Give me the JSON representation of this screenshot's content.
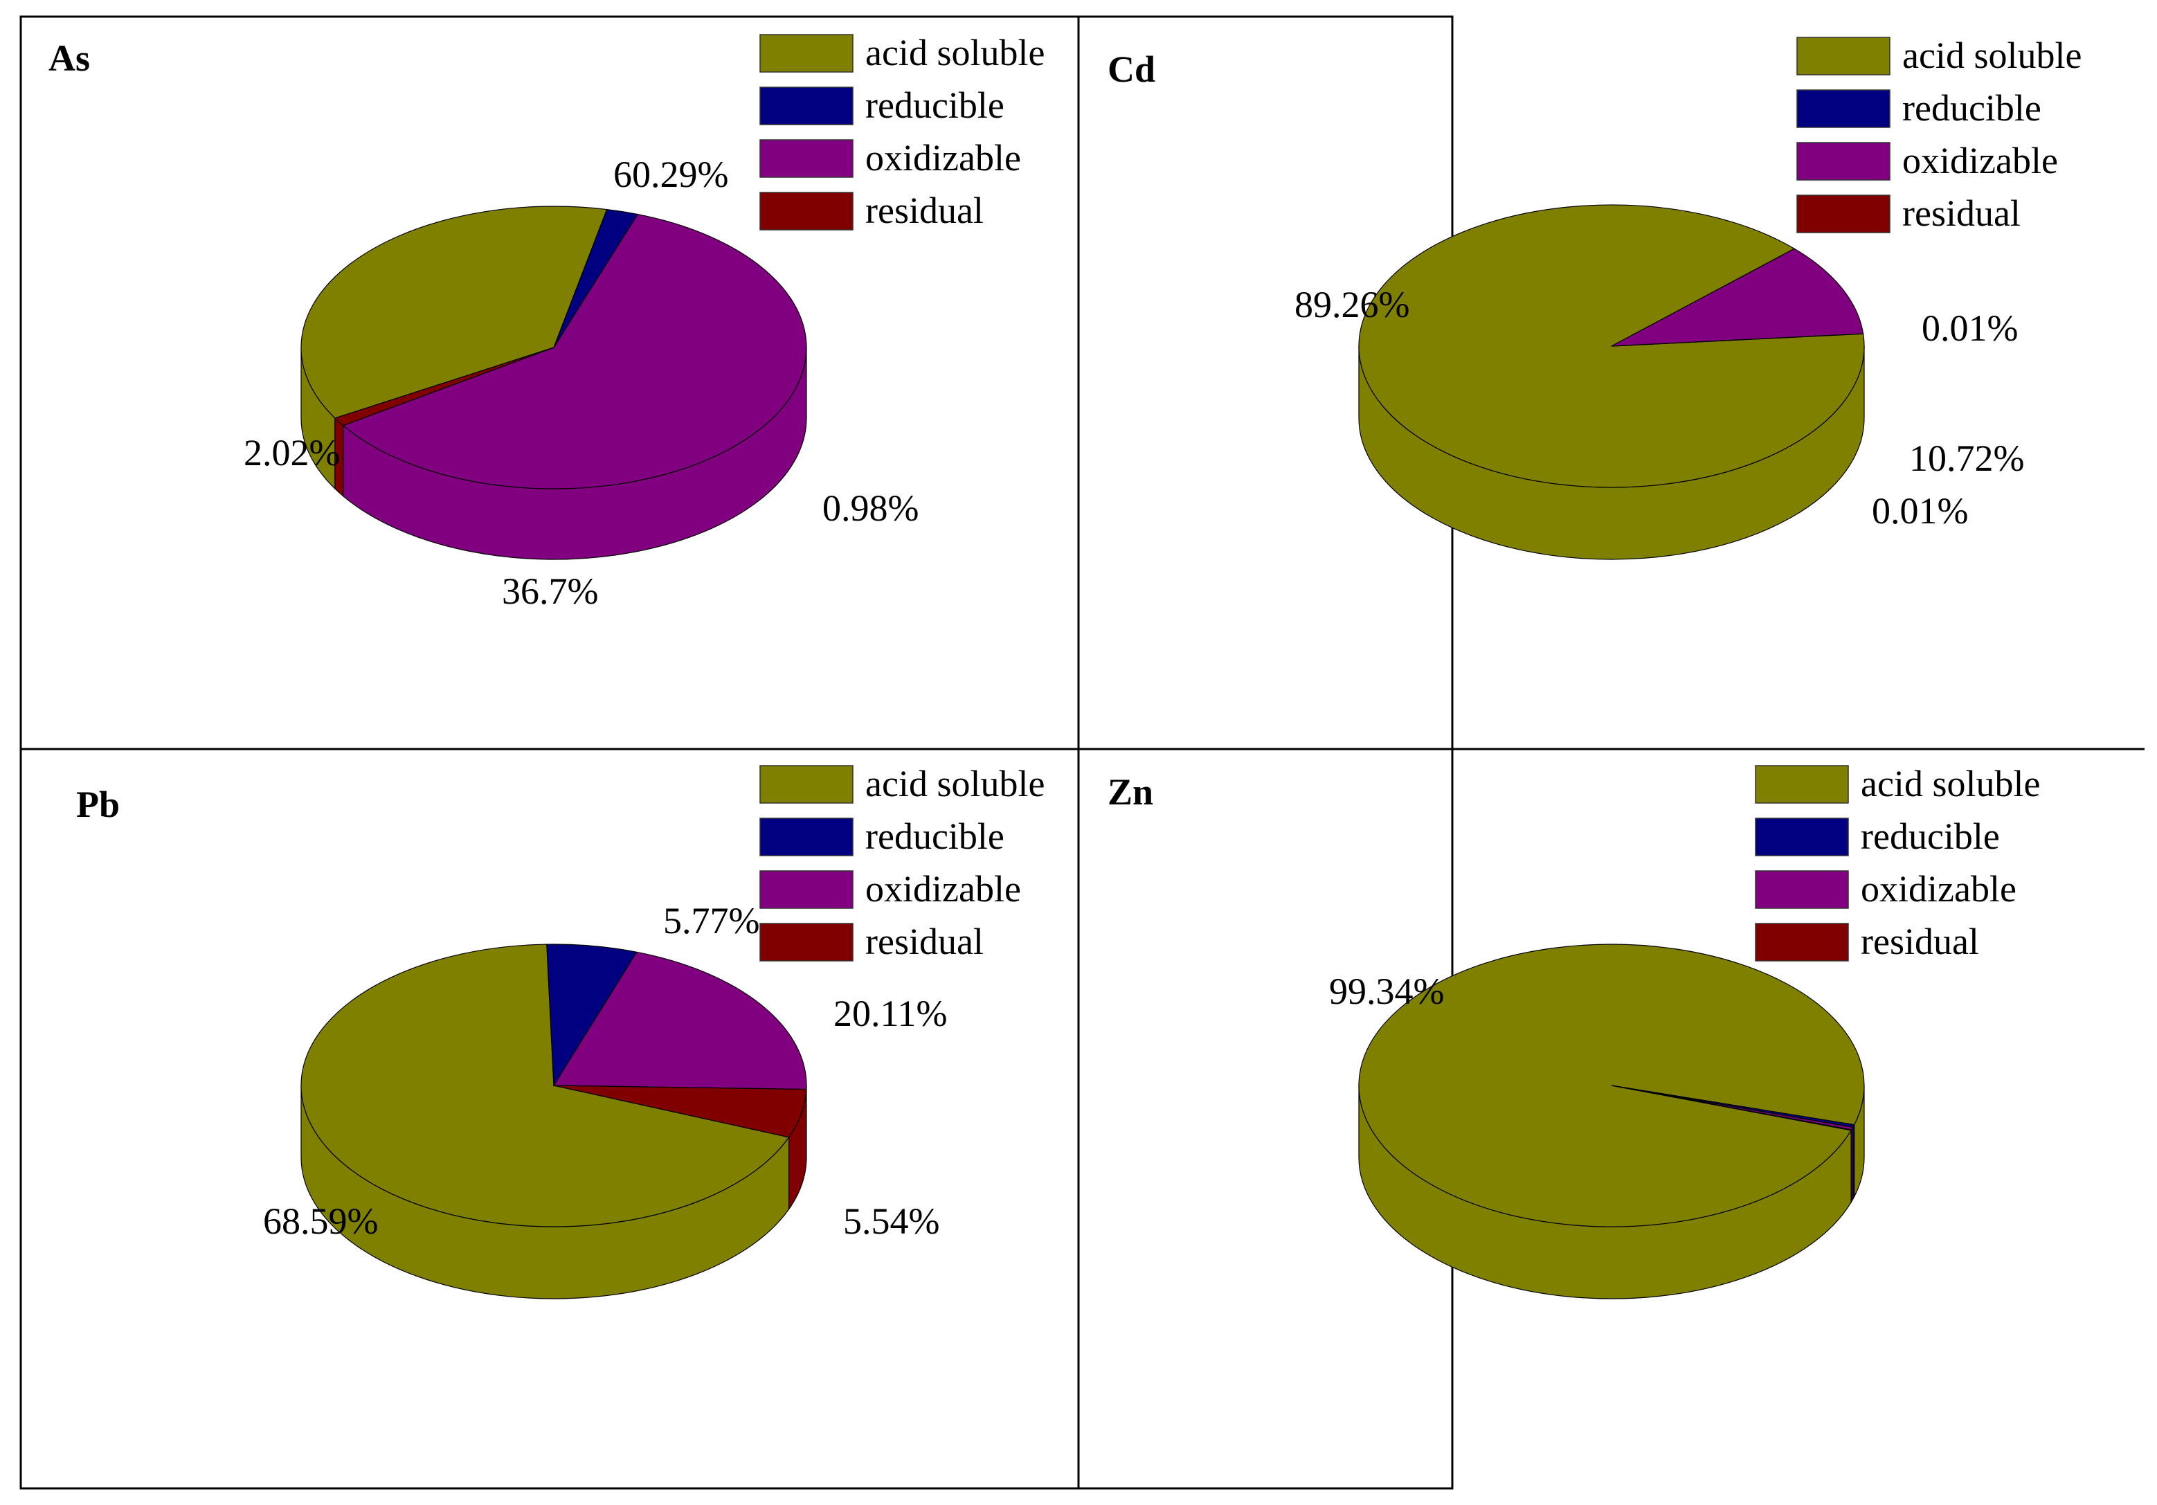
{
  "colors": {
    "acid soluble": "#808000",
    "reducible": "#000080",
    "oxidizable": "#800080",
    "residual": "#800000"
  },
  "chart_data": [
    {
      "type": "pie",
      "title": "As",
      "legend": [
        "acid soluble",
        "reducible",
        "oxidizable",
        "residual"
      ],
      "legend_position": "top-right",
      "categories": [
        "acid soluble",
        "reducible",
        "oxidizable",
        "residual"
      ],
      "values": [
        36.7,
        2.02,
        60.29,
        0.98
      ],
      "labels": [
        "36.7%",
        "2.02%",
        "60.29%",
        "0.98%"
      ]
    },
    {
      "type": "pie",
      "title": "Cd",
      "legend": [
        "acid soluble",
        "reducible",
        "oxidizable",
        "residual"
      ],
      "legend_position": "top-right",
      "categories": [
        "acid soluble",
        "reducible",
        "oxidizable",
        "residual"
      ],
      "values": [
        89.26,
        0.01,
        10.72,
        0.01
      ],
      "labels": [
        "89.26%",
        "0.01%",
        "10.72%",
        "0.01%"
      ]
    },
    {
      "type": "pie",
      "title": "Pb",
      "legend": [
        "acid soluble",
        "reducible",
        "oxidizable",
        "residual"
      ],
      "legend_position": "top-right",
      "categories": [
        "acid soluble",
        "reducible",
        "oxidizable",
        "residual"
      ],
      "values": [
        68.59,
        5.77,
        20.11,
        5.54
      ],
      "labels": [
        "68.59%",
        "5.77%",
        "20.11%",
        "5.54%"
      ]
    },
    {
      "type": "pie",
      "title": "Zn",
      "legend": [
        "acid soluble",
        "reducible",
        "oxidizable",
        "residual"
      ],
      "legend_position": "top-right",
      "categories": [
        "acid soluble",
        "reducible",
        "oxidizable",
        "residual"
      ],
      "values": [
        99.34,
        0.3,
        0.3,
        0.06
      ],
      "labels": [
        "99.34%",
        "",
        "",
        ""
      ]
    }
  ]
}
